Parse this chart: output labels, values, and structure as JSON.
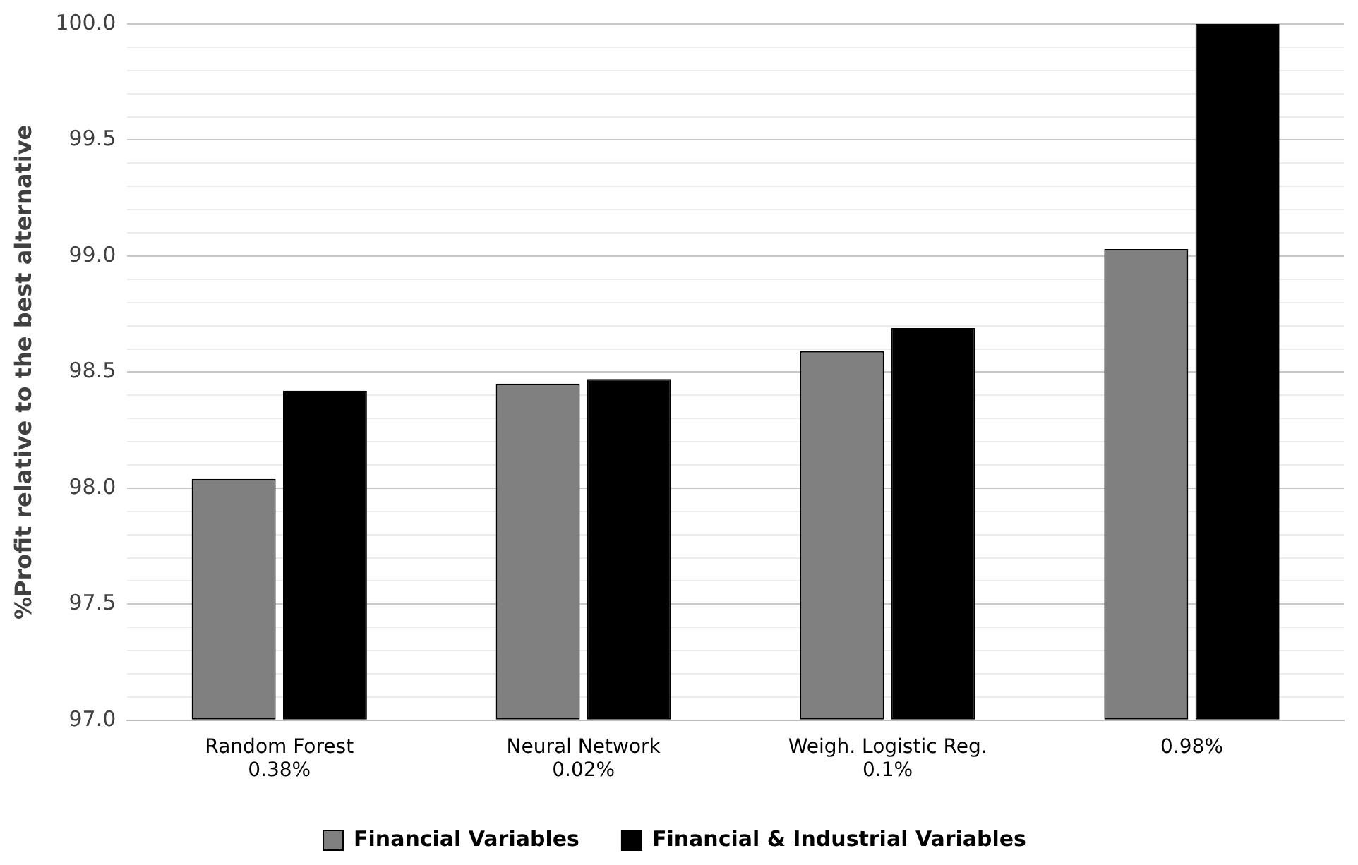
{
  "chart_data": {
    "type": "bar",
    "ylabel": "%Profit relative to the best alternative",
    "categories": [
      "Random Forest\n0.38%",
      "Neural Network\n0.02%",
      "Weigh. Logistic Reg.\n0.1%",
      "0.98%"
    ],
    "series": [
      {
        "name": "Financial Variables",
        "color": "#808080",
        "values": [
          98.04,
          98.45,
          98.59,
          99.03
        ]
      },
      {
        "name": "Financial & Industrial Variables",
        "color": "#000000",
        "values": [
          98.42,
          98.47,
          98.69,
          100.0
        ]
      }
    ],
    "ylim": [
      97,
      100
    ],
    "yticks": [
      {
        "value": 97,
        "label": "97.0"
      },
      {
        "value": 97.1,
        "label": null
      },
      {
        "value": 97.2,
        "label": null
      },
      {
        "value": 97.3,
        "label": null
      },
      {
        "value": 97.4,
        "label": null
      },
      {
        "value": 97.5,
        "label": "97.5"
      },
      {
        "value": 97.6,
        "label": null
      },
      {
        "value": 97.7,
        "label": null
      },
      {
        "value": 97.8,
        "label": null
      },
      {
        "value": 97.9,
        "label": null
      },
      {
        "value": 98,
        "label": "98.0"
      },
      {
        "value": 98.1,
        "label": null
      },
      {
        "value": 98.2,
        "label": null
      },
      {
        "value": 98.3,
        "label": null
      },
      {
        "value": 98.4,
        "label": null
      },
      {
        "value": 98.5,
        "label": "98.5"
      },
      {
        "value": 98.6,
        "label": null
      },
      {
        "value": 98.7,
        "label": null
      },
      {
        "value": 98.8,
        "label": null
      },
      {
        "value": 98.9,
        "label": null
      },
      {
        "value": 99,
        "label": "99.0"
      },
      {
        "value": 99.1,
        "label": null
      },
      {
        "value": 99.2,
        "label": null
      },
      {
        "value": 99.3,
        "label": null
      },
      {
        "value": 99.4,
        "label": null
      },
      {
        "value": 99.5,
        "label": "99.5"
      },
      {
        "value": 99.6,
        "label": null
      },
      {
        "value": 99.7,
        "label": null
      },
      {
        "value": 99.8,
        "label": null
      },
      {
        "value": 99.9,
        "label": null
      },
      {
        "value": 100,
        "label": "100.0"
      }
    ],
    "grid": "y",
    "legend": "bottom"
  }
}
